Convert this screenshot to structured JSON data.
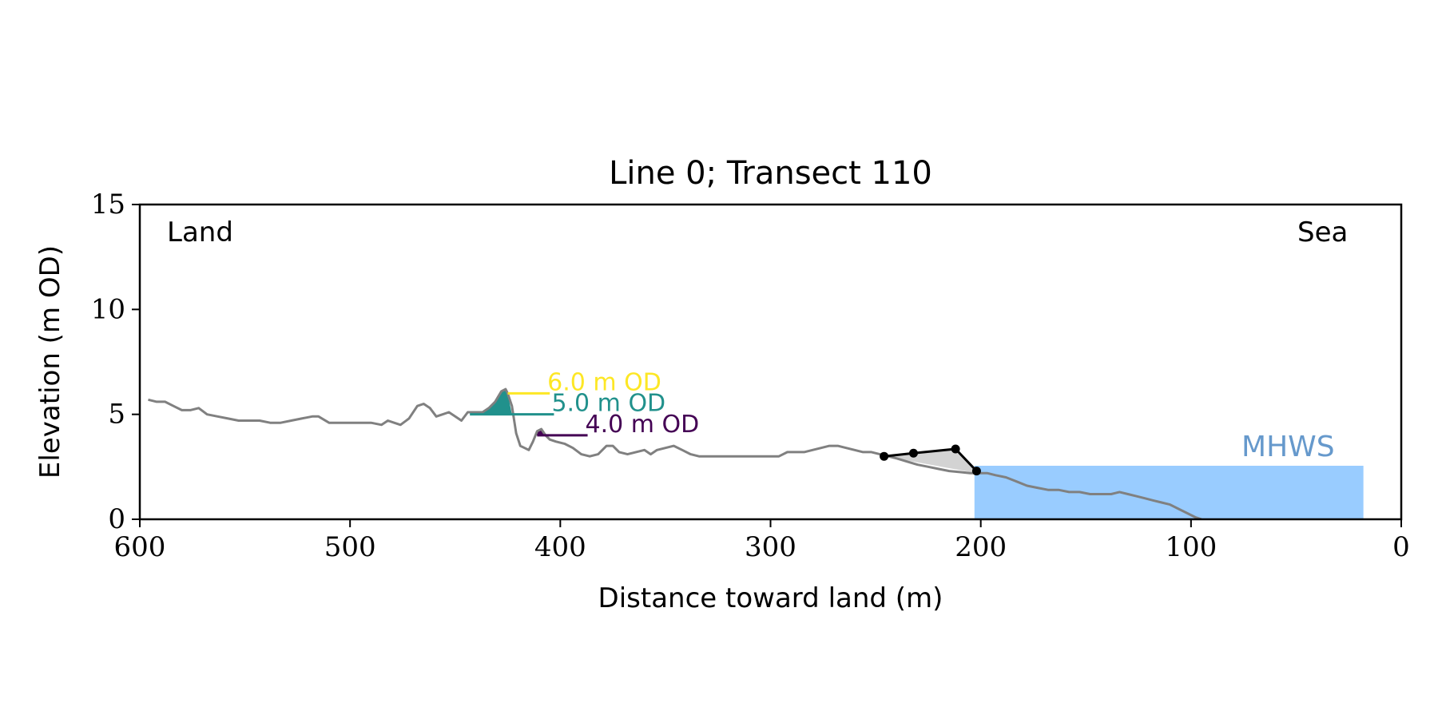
{
  "chart_data": {
    "type": "line",
    "title": "Line 0; Transect 110",
    "xlabel": "Distance toward land (m)",
    "ylabel": "Elevation (m OD)",
    "xlim": [
      600,
      0
    ],
    "ylim": [
      0,
      15
    ],
    "x_ticks": [
      600,
      500,
      400,
      300,
      200,
      100,
      0
    ],
    "y_ticks": [
      0,
      5,
      10,
      15
    ],
    "grid": false,
    "annotations": {
      "left": "Land",
      "right": "Sea"
    },
    "profile": {
      "color": "#808080",
      "points": [
        [
          596,
          5.7
        ],
        [
          592,
          5.6
        ],
        [
          588,
          5.6
        ],
        [
          584,
          5.4
        ],
        [
          580,
          5.2
        ],
        [
          576,
          5.2
        ],
        [
          572,
          5.3
        ],
        [
          568,
          5.0
        ],
        [
          563,
          4.9
        ],
        [
          558,
          4.8
        ],
        [
          553,
          4.7
        ],
        [
          548,
          4.7
        ],
        [
          543,
          4.7
        ],
        [
          538,
          4.6
        ],
        [
          533,
          4.6
        ],
        [
          528,
          4.7
        ],
        [
          523,
          4.8
        ],
        [
          518,
          4.9
        ],
        [
          515,
          4.9
        ],
        [
          510,
          4.6
        ],
        [
          505,
          4.6
        ],
        [
          500,
          4.6
        ],
        [
          495,
          4.6
        ],
        [
          490,
          4.6
        ],
        [
          485,
          4.5
        ],
        [
          482,
          4.7
        ],
        [
          479,
          4.6
        ],
        [
          476,
          4.5
        ],
        [
          472,
          4.8
        ],
        [
          468,
          5.4
        ],
        [
          465,
          5.5
        ],
        [
          462,
          5.3
        ],
        [
          459,
          4.9
        ],
        [
          456,
          5.0
        ],
        [
          453,
          5.1
        ],
        [
          450,
          4.9
        ],
        [
          447,
          4.7
        ],
        [
          444,
          5.1
        ],
        [
          440,
          5.1
        ],
        [
          437,
          5.1
        ],
        [
          434,
          5.3
        ],
        [
          431,
          5.6
        ],
        [
          428,
          6.1
        ],
        [
          426,
          6.2
        ],
        [
          425,
          6.0
        ],
        [
          423,
          5.4
        ],
        [
          421,
          4.1
        ],
        [
          419,
          3.5
        ],
        [
          417,
          3.4
        ],
        [
          415,
          3.3
        ],
        [
          413,
          3.7
        ],
        [
          411,
          4.2
        ],
        [
          409,
          4.3
        ],
        [
          407,
          4.0
        ],
        [
          405,
          3.8
        ],
        [
          402,
          3.7
        ],
        [
          398,
          3.6
        ],
        [
          394,
          3.4
        ],
        [
          390,
          3.1
        ],
        [
          386,
          3.0
        ],
        [
          382,
          3.1
        ],
        [
          378,
          3.5
        ],
        [
          375,
          3.5
        ],
        [
          372,
          3.2
        ],
        [
          368,
          3.1
        ],
        [
          364,
          3.2
        ],
        [
          360,
          3.3
        ],
        [
          357,
          3.1
        ],
        [
          354,
          3.3
        ],
        [
          350,
          3.4
        ],
        [
          346,
          3.5
        ],
        [
          342,
          3.3
        ],
        [
          338,
          3.1
        ],
        [
          334,
          3.0
        ],
        [
          328,
          3.0
        ],
        [
          322,
          3.0
        ],
        [
          316,
          3.0
        ],
        [
          310,
          3.0
        ],
        [
          304,
          3.0
        ],
        [
          300,
          3.0
        ],
        [
          296,
          3.0
        ],
        [
          292,
          3.2
        ],
        [
          288,
          3.2
        ],
        [
          284,
          3.2
        ],
        [
          280,
          3.3
        ],
        [
          276,
          3.4
        ],
        [
          272,
          3.5
        ],
        [
          268,
          3.5
        ],
        [
          264,
          3.4
        ],
        [
          260,
          3.3
        ],
        [
          256,
          3.2
        ],
        [
          252,
          3.2
        ],
        [
          248,
          3.1
        ],
        [
          244,
          3.0
        ],
        [
          240,
          2.9
        ],
        [
          235,
          2.75
        ],
        [
          230,
          2.6
        ],
        [
          225,
          2.5
        ],
        [
          220,
          2.4
        ],
        [
          215,
          2.3
        ],
        [
          210,
          2.25
        ],
        [
          205,
          2.2
        ],
        [
          201,
          2.2
        ],
        [
          197,
          2.2
        ],
        [
          193,
          2.1
        ],
        [
          188,
          2.0
        ],
        [
          183,
          1.8
        ],
        [
          178,
          1.6
        ],
        [
          173,
          1.5
        ],
        [
          168,
          1.4
        ],
        [
          163,
          1.4
        ],
        [
          158,
          1.3
        ],
        [
          153,
          1.3
        ],
        [
          148,
          1.2
        ],
        [
          143,
          1.2
        ],
        [
          138,
          1.2
        ],
        [
          134,
          1.3
        ],
        [
          130,
          1.2
        ],
        [
          126,
          1.1
        ],
        [
          122,
          1.0
        ],
        [
          118,
          0.9
        ],
        [
          114,
          0.8
        ],
        [
          110,
          0.7
        ],
        [
          106,
          0.5
        ],
        [
          102,
          0.3
        ],
        [
          98,
          0.1
        ],
        [
          95,
          0.0
        ]
      ]
    },
    "dune_crests": [
      {
        "label": "6.0 m OD",
        "elevation": 6.0,
        "x_start": 425,
        "x_end": 405,
        "color": "#fde725"
      },
      {
        "label": "5.0 m OD",
        "elevation": 5.0,
        "x_start": 443,
        "x_end": 403,
        "color": "#21918c"
      },
      {
        "label": "4.0 m OD",
        "elevation": 4.0,
        "x_start": 411,
        "x_end": 387,
        "color": "#440154"
      }
    ],
    "dune_fill_color": "#21918c",
    "toe_line": {
      "color": "#000000",
      "points": [
        [
          246,
          3.0
        ],
        [
          232,
          3.15
        ],
        [
          212,
          3.35
        ],
        [
          202,
          2.3
        ]
      ],
      "baseline": [
        [
          246,
          3.0
        ],
        [
          202,
          2.2
        ]
      ],
      "fill_color": "#d3d3d3"
    },
    "mhws": {
      "label": "MHWS",
      "elevation": 2.55,
      "x_start": 203,
      "x_end": 18,
      "color": "#99ccff",
      "label_color": "#6699cc"
    }
  }
}
